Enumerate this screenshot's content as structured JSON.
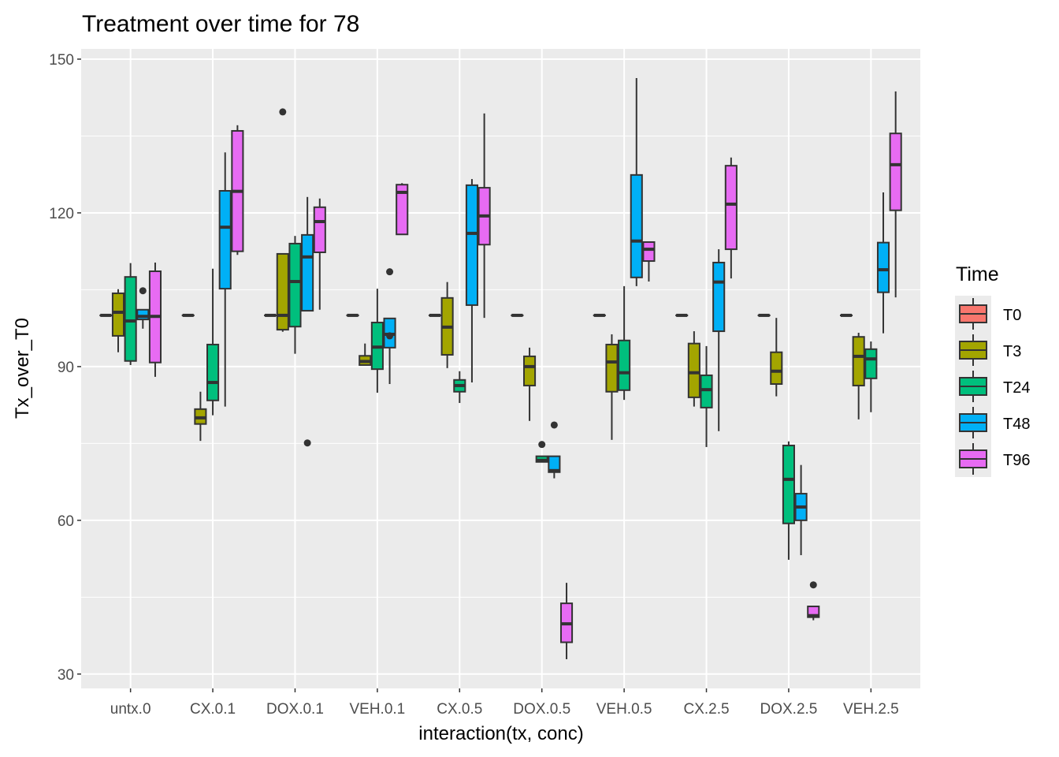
{
  "chart_data": {
    "type": "boxplot",
    "title": "Treatment over time for 78",
    "xlabel": "interaction(tx, conc)",
    "ylabel": "Tx_over_T0",
    "ylim": [
      27.2,
      152.0
    ],
    "yticks": [
      30,
      60,
      90,
      120,
      150
    ],
    "ytick_labels": [
      "30",
      "60",
      "90",
      "120",
      "150"
    ],
    "grid": true,
    "legend": {
      "title": "Time",
      "position": "right",
      "entries": [
        {
          "name": "T0",
          "color": "#F8766D"
        },
        {
          "name": "T3",
          "color": "#A3A500"
        },
        {
          "name": "T24",
          "color": "#00BF7D"
        },
        {
          "name": "T48",
          "color": "#00B0F6"
        },
        {
          "name": "T96",
          "color": "#E76BF3"
        }
      ]
    },
    "categories": [
      "untx.0",
      "CX.0.1",
      "DOX.0.1",
      "VEH.0.1",
      "CX.0.5",
      "DOX.0.5",
      "VEH.0.5",
      "CX.2.5",
      "DOX.2.5",
      "VEH.2.5"
    ],
    "series": [
      {
        "name": "T0",
        "boxes": [
          {
            "lower_whisker": 100,
            "q1": 100,
            "median": 100,
            "q3": 100,
            "upper_whisker": 100,
            "outliers": []
          },
          {
            "lower_whisker": 100,
            "q1": 100,
            "median": 100,
            "q3": 100,
            "upper_whisker": 100,
            "outliers": []
          },
          {
            "lower_whisker": 100,
            "q1": 100,
            "median": 100,
            "q3": 100,
            "upper_whisker": 100,
            "outliers": []
          },
          {
            "lower_whisker": 100,
            "q1": 100,
            "median": 100,
            "q3": 100,
            "upper_whisker": 100,
            "outliers": []
          },
          {
            "lower_whisker": 100,
            "q1": 100,
            "median": 100,
            "q3": 100,
            "upper_whisker": 100,
            "outliers": []
          },
          {
            "lower_whisker": 100,
            "q1": 100,
            "median": 100,
            "q3": 100,
            "upper_whisker": 100,
            "outliers": []
          },
          {
            "lower_whisker": 100,
            "q1": 100,
            "median": 100,
            "q3": 100,
            "upper_whisker": 100,
            "outliers": []
          },
          {
            "lower_whisker": 100,
            "q1": 100,
            "median": 100,
            "q3": 100,
            "upper_whisker": 100,
            "outliers": []
          },
          {
            "lower_whisker": 100,
            "q1": 100,
            "median": 100,
            "q3": 100,
            "upper_whisker": 100,
            "outliers": []
          },
          {
            "lower_whisker": 100,
            "q1": 100,
            "median": 100,
            "q3": 100,
            "upper_whisker": 100,
            "outliers": []
          }
        ]
      },
      {
        "name": "T3",
        "boxes": [
          {
            "lower_whisker": 92.8,
            "q1": 96.0,
            "median": 100.6,
            "q3": 104.3,
            "upper_whisker": 105.1,
            "outliers": []
          },
          {
            "lower_whisker": 75.5,
            "q1": 78.8,
            "median": 80.0,
            "q3": 81.7,
            "upper_whisker": 85.1,
            "outliers": []
          },
          {
            "lower_whisker": 96.8,
            "q1": 97.2,
            "median": 100.0,
            "q3": 112.0,
            "upper_whisker": 112.0,
            "outliers": [
              139.7
            ]
          },
          {
            "lower_whisker": 90.3,
            "q1": 90.3,
            "median": 91.0,
            "q3": 92.1,
            "upper_whisker": 94.5,
            "outliers": []
          },
          {
            "lower_whisker": 89.7,
            "q1": 92.3,
            "median": 97.7,
            "q3": 103.4,
            "upper_whisker": 106.5,
            "outliers": []
          },
          {
            "lower_whisker": 79.4,
            "q1": 86.3,
            "median": 90.0,
            "q3": 92.0,
            "upper_whisker": 93.7,
            "outliers": []
          },
          {
            "lower_whisker": 75.7,
            "q1": 85.1,
            "median": 90.9,
            "q3": 94.3,
            "upper_whisker": 96.3,
            "outliers": []
          },
          {
            "lower_whisker": 82.2,
            "q1": 84.0,
            "median": 88.8,
            "q3": 94.5,
            "upper_whisker": 96.9,
            "outliers": []
          },
          {
            "lower_whisker": 84.2,
            "q1": 86.6,
            "median": 89.1,
            "q3": 92.8,
            "upper_whisker": 99.5,
            "outliers": []
          },
          {
            "lower_whisker": 79.7,
            "q1": 86.3,
            "median": 92.0,
            "q3": 95.8,
            "upper_whisker": 96.6,
            "outliers": []
          }
        ]
      },
      {
        "name": "T24",
        "boxes": [
          {
            "lower_whisker": 90.3,
            "q1": 91.1,
            "median": 98.9,
            "q3": 107.5,
            "upper_whisker": 110.2,
            "outliers": []
          },
          {
            "lower_whisker": 80.5,
            "q1": 83.4,
            "median": 86.9,
            "q3": 94.3,
            "upper_whisker": 109.1,
            "outliers": []
          },
          {
            "lower_whisker": 92.5,
            "q1": 97.8,
            "median": 106.6,
            "q3": 114.0,
            "upper_whisker": 115.5,
            "outliers": []
          },
          {
            "lower_whisker": 84.9,
            "q1": 89.5,
            "median": 93.8,
            "q3": 98.6,
            "upper_whisker": 105.2,
            "outliers": []
          },
          {
            "lower_whisker": 82.9,
            "q1": 85.1,
            "median": 86.3,
            "q3": 87.4,
            "upper_whisker": 89.1,
            "outliers": []
          },
          {
            "lower_whisker": 71.4,
            "q1": 71.4,
            "median": 71.7,
            "q3": 72.5,
            "upper_whisker": 72.5,
            "outliers": [
              74.8
            ]
          },
          {
            "lower_whisker": 83.5,
            "q1": 85.4,
            "median": 88.8,
            "q3": 95.1,
            "upper_whisker": 105.7,
            "outliers": []
          },
          {
            "lower_whisker": 74.3,
            "q1": 82.0,
            "median": 85.5,
            "q3": 88.3,
            "upper_whisker": 94.0,
            "outliers": []
          },
          {
            "lower_whisker": 52.3,
            "q1": 59.4,
            "median": 68.0,
            "q3": 74.6,
            "upper_whisker": 75.4,
            "outliers": []
          },
          {
            "lower_whisker": 81.1,
            "q1": 87.7,
            "median": 91.5,
            "q3": 93.4,
            "upper_whisker": 94.9,
            "outliers": []
          }
        ]
      },
      {
        "name": "T48",
        "boxes": [
          {
            "lower_whisker": 97.4,
            "q1": 99.2,
            "median": 99.8,
            "q3": 101.1,
            "upper_whisker": 101.1,
            "outliers": [
              104.8
            ]
          },
          {
            "lower_whisker": 82.2,
            "q1": 105.2,
            "median": 117.2,
            "q3": 124.3,
            "upper_whisker": 131.8,
            "outliers": []
          },
          {
            "lower_whisker": 100.9,
            "q1": 100.9,
            "median": 111.4,
            "q3": 115.7,
            "upper_whisker": 123.1,
            "outliers": [
              75.1
            ]
          },
          {
            "lower_whisker": 86.6,
            "q1": 93.7,
            "median": 96.3,
            "q3": 99.4,
            "upper_whisker": 99.4,
            "outliers": [
              108.5,
              96.0
            ]
          },
          {
            "lower_whisker": 86.9,
            "q1": 102.0,
            "median": 116.0,
            "q3": 125.4,
            "upper_whisker": 126.6,
            "outliers": []
          },
          {
            "lower_whisker": 68.2,
            "q1": 69.4,
            "median": 69.7,
            "q3": 72.5,
            "upper_whisker": 72.5,
            "outliers": [
              78.6
            ]
          },
          {
            "lower_whisker": 105.7,
            "q1": 107.4,
            "median": 114.5,
            "q3": 127.4,
            "upper_whisker": 146.3,
            "outliers": []
          },
          {
            "lower_whisker": 77.4,
            "q1": 96.9,
            "median": 106.5,
            "q3": 110.3,
            "upper_whisker": 112.9,
            "outliers": []
          },
          {
            "lower_whisker": 53.2,
            "q1": 60.0,
            "median": 62.6,
            "q3": 65.2,
            "upper_whisker": 70.8,
            "outliers": []
          },
          {
            "lower_whisker": 96.5,
            "q1": 104.5,
            "median": 108.9,
            "q3": 114.2,
            "upper_whisker": 124.0,
            "outliers": []
          }
        ]
      },
      {
        "name": "T96",
        "boxes": [
          {
            "lower_whisker": 88.0,
            "q1": 90.8,
            "median": 99.8,
            "q3": 108.6,
            "upper_whisker": 110.3,
            "outliers": []
          },
          {
            "lower_whisker": 111.8,
            "q1": 112.5,
            "median": 124.2,
            "q3": 136.0,
            "upper_whisker": 137.1,
            "outliers": []
          },
          {
            "lower_whisker": 101.1,
            "q1": 112.3,
            "median": 118.3,
            "q3": 121.1,
            "upper_whisker": 122.8,
            "outliers": []
          },
          {
            "lower_whisker": 115.8,
            "q1": 115.8,
            "median": 124.0,
            "q3": 125.5,
            "upper_whisker": 125.8,
            "outliers": []
          },
          {
            "lower_whisker": 99.5,
            "q1": 113.8,
            "median": 119.4,
            "q3": 124.9,
            "upper_whisker": 139.4,
            "outliers": []
          },
          {
            "lower_whisker": 32.9,
            "q1": 36.2,
            "median": 39.8,
            "q3": 43.8,
            "upper_whisker": 47.8,
            "outliers": []
          },
          {
            "lower_whisker": 106.6,
            "q1": 110.6,
            "median": 112.9,
            "q3": 114.3,
            "upper_whisker": 114.3,
            "outliers": []
          },
          {
            "lower_whisker": 107.2,
            "q1": 112.9,
            "median": 121.7,
            "q3": 129.2,
            "upper_whisker": 130.8,
            "outliers": []
          },
          {
            "lower_whisker": 40.5,
            "q1": 41.1,
            "median": 41.4,
            "q3": 43.2,
            "upper_whisker": 43.2,
            "outliers": [
              47.4
            ]
          },
          {
            "lower_whisker": 103.5,
            "q1": 120.5,
            "median": 129.4,
            "q3": 135.5,
            "upper_whisker": 143.7,
            "outliers": []
          }
        ]
      }
    ]
  }
}
